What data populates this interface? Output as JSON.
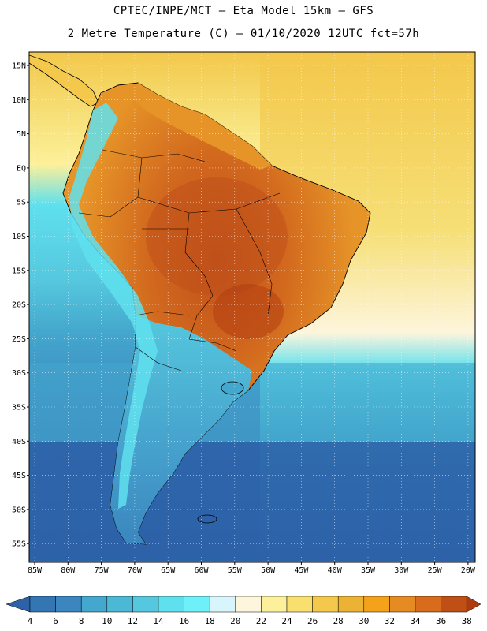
{
  "header": {
    "line1": "CPTEC/INPE/MCT –  Eta Model 15km – GFS",
    "line2": "2 Metre Temperature (C) – 01/10/2020 12UTC fct=57h"
  },
  "map": {
    "lat_labels": [
      "15N",
      "10N",
      "5N",
      "EQ",
      "5S",
      "10S",
      "15S",
      "20S",
      "25S",
      "30S",
      "35S",
      "40S",
      "45S",
      "50S",
      "55S"
    ],
    "lon_labels": [
      "85W",
      "80W",
      "75W",
      "70W",
      "65W",
      "60W",
      "55W",
      "50W",
      "45W",
      "40W",
      "35W",
      "30W",
      "25W",
      "20W"
    ],
    "colors": {
      "ocean_far_south": "#2d62a8",
      "ocean_south": "#3b86bf",
      "ocean_mid": "#44a7cd",
      "ocean_cool": "#55c7de",
      "ocean_light": "#5fe0ee",
      "ocean_warm_north": "#f6df76",
      "ocean_trop": "#f3c84b",
      "land_hot": "#d2691e",
      "land_very_hot": "#c0501a",
      "land_warm": "#e69428",
      "andes": "#5fe0ee",
      "coast": "#000000"
    }
  },
  "colorbar": {
    "labels": [
      "4",
      "6",
      "8",
      "10",
      "12",
      "14",
      "16",
      "18",
      "20",
      "22",
      "24",
      "26",
      "28",
      "30",
      "32",
      "34",
      "36",
      "38"
    ],
    "colors": [
      "#2d62a8",
      "#3475b3",
      "#3b86bf",
      "#44a7cd",
      "#4bb8d6",
      "#55c7de",
      "#5fe0ee",
      "#6ef0f8",
      "#d8f5fb",
      "#fdf5dc",
      "#fdf09a",
      "#f9e06e",
      "#f3c84b",
      "#ebb233",
      "#f3a21a",
      "#e68b22",
      "#d86c1c",
      "#c04f15",
      "#b03a0f"
    ]
  }
}
